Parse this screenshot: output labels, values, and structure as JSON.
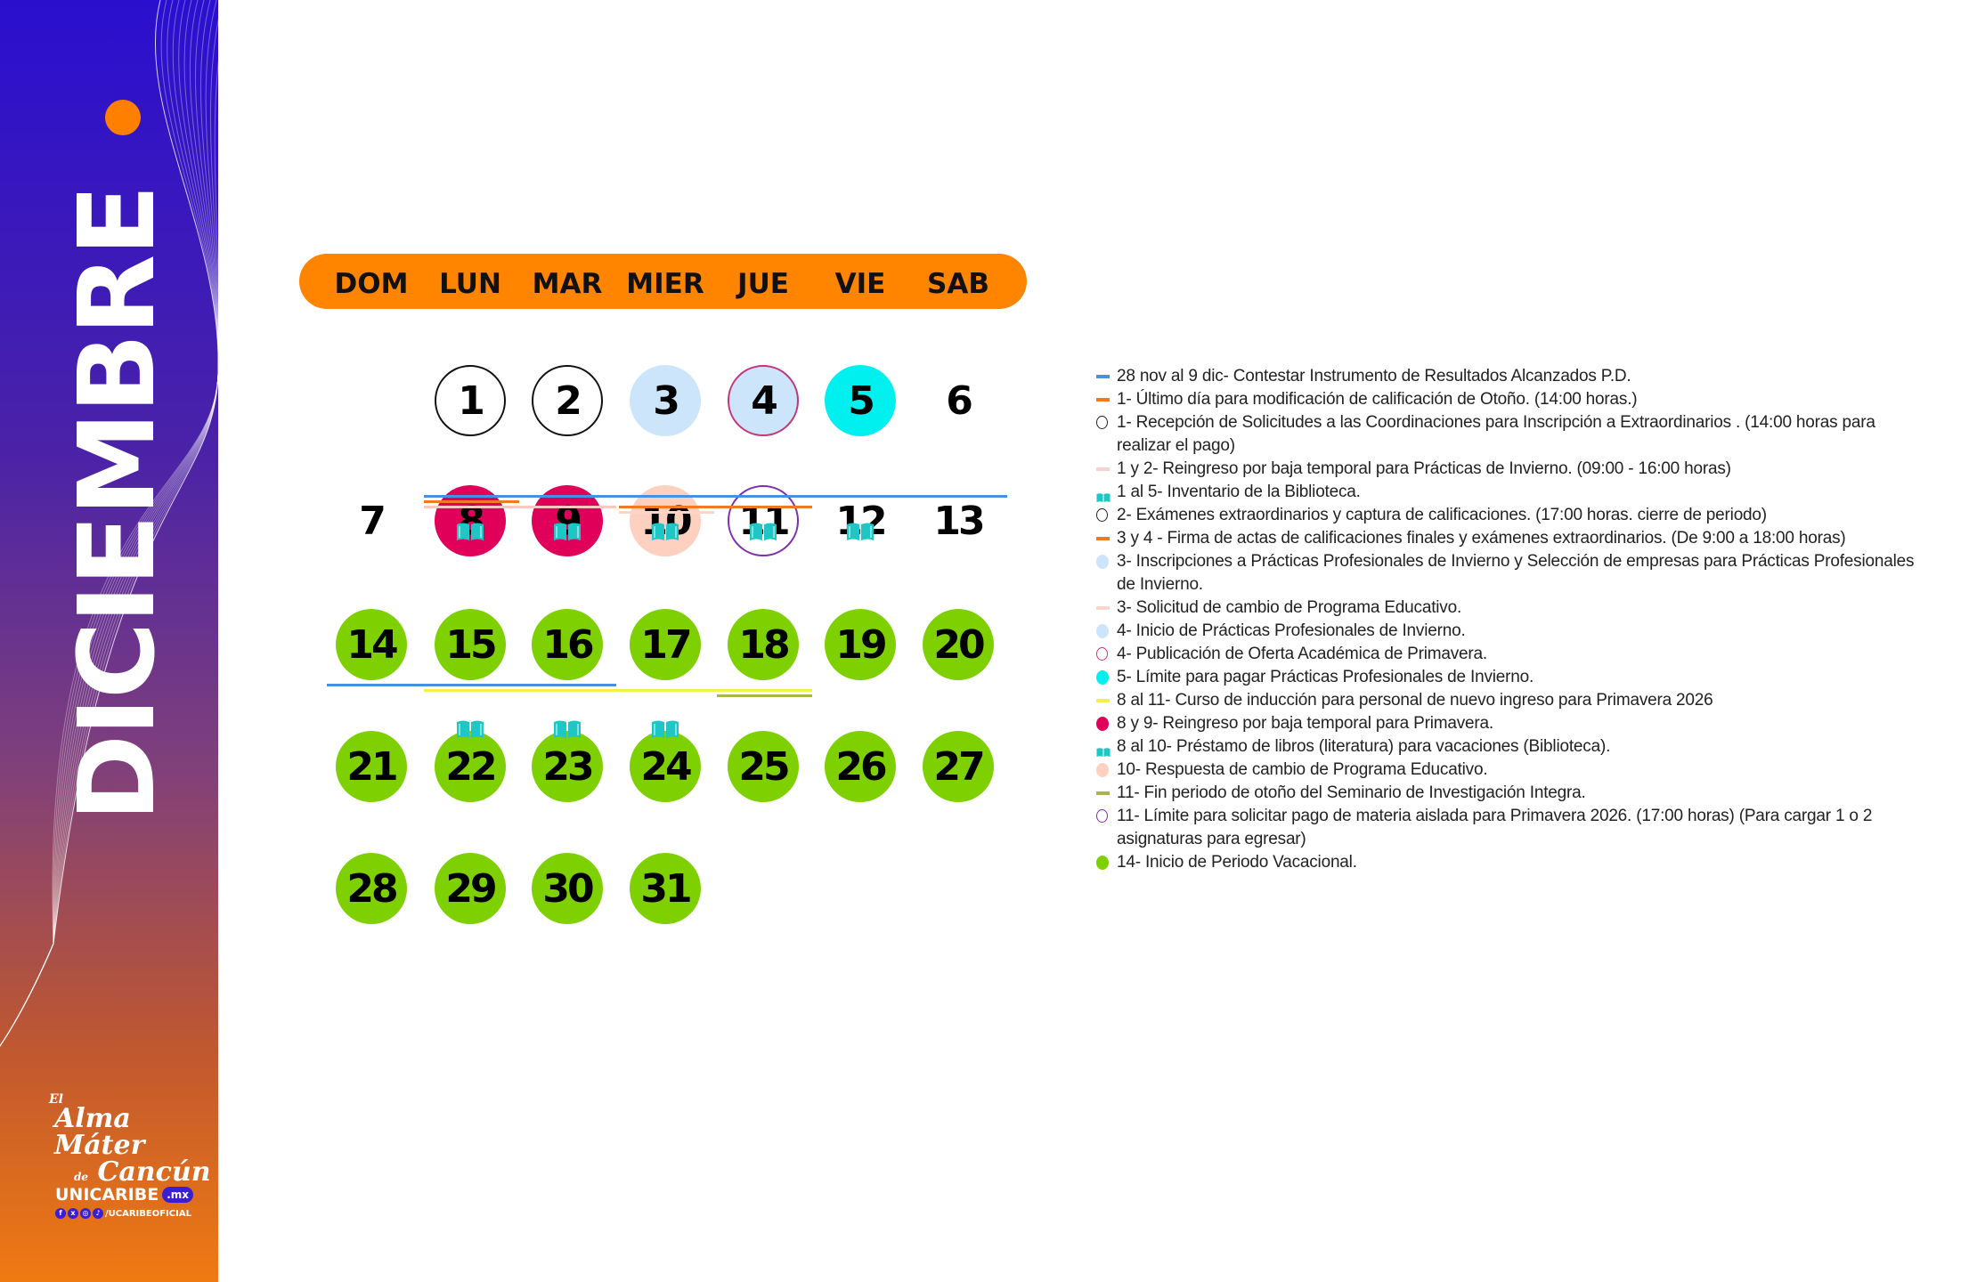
{
  "sidebar": {
    "month": "DICIEMBRE",
    "motto": {
      "a": "El",
      "b": "Alma Máter",
      "d": "de",
      "c": "Cancún"
    },
    "brand": "UNICARIBE",
    "brand_suffix": ".mx",
    "social_handle": "/UCARIBEOFICIAL",
    "social_icons": [
      "facebook-icon",
      "x-icon",
      "instagram-icon",
      "tiktok-icon"
    ],
    "colors": {
      "top": "#2a0fcf",
      "bottom": "#f07a12",
      "dot": "#ff7f00"
    }
  },
  "header": {
    "days": [
      "DOM",
      "LUN",
      "MAR",
      "MIER",
      "JUE",
      "VIE",
      "SAB"
    ],
    "color": "#ff8400"
  },
  "calendar": {
    "first_weekday": 1,
    "days": [
      {
        "n": "1",
        "ring": "#111"
      },
      {
        "n": "2",
        "ring": "#111"
      },
      {
        "n": "3",
        "fill": "#cde5fb"
      },
      {
        "n": "4",
        "fill": "#cde5fb",
        "ring": "#c2367a"
      },
      {
        "n": "5",
        "fill": "#00f0f0"
      },
      {
        "n": "6"
      },
      {
        "n": "7"
      },
      {
        "n": "8",
        "fill": "#e0005a"
      },
      {
        "n": "9",
        "fill": "#e0005a"
      },
      {
        "n": "10",
        "fill": "#fdd0c0"
      },
      {
        "n": "11",
        "ring": "#7d2fb0"
      },
      {
        "n": "12"
      },
      {
        "n": "13"
      },
      {
        "n": "14",
        "fill": "#7ed000"
      },
      {
        "n": "15",
        "fill": "#7ed000"
      },
      {
        "n": "16",
        "fill": "#7ed000"
      },
      {
        "n": "17",
        "fill": "#7ed000"
      },
      {
        "n": "18",
        "fill": "#7ed000"
      },
      {
        "n": "19",
        "fill": "#7ed000"
      },
      {
        "n": "20",
        "fill": "#7ed000"
      },
      {
        "n": "21",
        "fill": "#7ed000"
      },
      {
        "n": "22",
        "fill": "#7ed000"
      },
      {
        "n": "23",
        "fill": "#7ed000"
      },
      {
        "n": "24",
        "fill": "#7ed000"
      },
      {
        "n": "25",
        "fill": "#7ed000"
      },
      {
        "n": "26",
        "fill": "#7ed000"
      },
      {
        "n": "27",
        "fill": "#7ed000"
      },
      {
        "n": "28",
        "fill": "#7ed000"
      },
      {
        "n": "29",
        "fill": "#7ed000"
      },
      {
        "n": "30",
        "fill": "#7ed000"
      },
      {
        "n": "31",
        "fill": "#7ed000"
      }
    ],
    "ranges": [
      {
        "from": 1,
        "to": 6,
        "color": "#4a90e2",
        "slot": 0
      },
      {
        "from": 1,
        "to": 1,
        "color": "#f07a20",
        "slot": 1
      },
      {
        "from": 1,
        "to": 2,
        "color": "#f9c9c0",
        "slot": 2
      },
      {
        "from": 3,
        "to": 4,
        "color": "#f07a20",
        "slot": 2
      },
      {
        "from": 3,
        "to": 3,
        "color": "#fbd6c8",
        "slot": 3
      },
      {
        "from": 7,
        "to": 9,
        "color": "#4a90e2",
        "slot": 0
      },
      {
        "from": 8,
        "to": 11,
        "color": "#f5ef4a",
        "slot": 1
      },
      {
        "from": 11,
        "to": 11,
        "color": "#a9b64a",
        "slot": 2
      }
    ],
    "book_days": [
      1,
      2,
      3,
      4,
      5,
      8,
      9,
      10
    ],
    "book_color": "#1fc6c6"
  },
  "legend": [
    {
      "marker": "line",
      "color": "#4a90e2",
      "text": "28 nov al 9 dic- Contestar Instrumento de Resultados Alcanzados P.D."
    },
    {
      "marker": "line",
      "color": "#f07a20",
      "text": "1- Último día para modificación de calificación de Otoño. (14:00 horas.)"
    },
    {
      "marker": "ring",
      "color": "#222",
      "text": "1- Recepción de Solicitudes a las Coordinaciones para Inscripción a Extraordinarios . (14:00 horas para realizar el pago)"
    },
    {
      "marker": "line",
      "color": "#fbd0d0",
      "text": "1 y 2- Reingreso por baja temporal para Prácticas de Invierno. (09:00 - 16:00 horas)"
    },
    {
      "marker": "book",
      "color": "#1fc6c6",
      "text": "1 al 5- Inventario de la Biblioteca."
    },
    {
      "marker": "ring",
      "color": "#222",
      "text": "2- Exámenes extraordinarios y captura de calificaciones. (17:00 horas. cierre de periodo)"
    },
    {
      "marker": "line",
      "color": "#f07a20",
      "text": "3 y 4 - Firma de actas de calificaciones finales y exámenes extraordinarios.  (De 9:00 a 18:00 horas)"
    },
    {
      "marker": "dot",
      "color": "#cde5fb",
      "text": "3- Inscripciones a Prácticas Profesionales de Invierno y Selección de empresas para Prácticas Profesionales de Invierno."
    },
    {
      "marker": "line",
      "color": "#fbd6c8",
      "text": "3- Solicitud de cambio de Programa Educativo."
    },
    {
      "marker": "dot",
      "color": "#cde5fb",
      "text": "4- Inicio de Prácticas Profesionales de Invierno."
    },
    {
      "marker": "ring",
      "color": "#c2367a",
      "text": "4- Publicación de Oferta Académica de Primavera."
    },
    {
      "marker": "dot",
      "color": "#00f0f0",
      "text": "5- Límite para pagar Prácticas Profesionales de Invierno."
    },
    {
      "marker": "line",
      "color": "#f5ef4a",
      "text": "8 al 11- Curso de inducción para personal de nuevo ingreso para Primavera 2026"
    },
    {
      "marker": "dot",
      "color": "#e0005a",
      "text": "8 y 9- Reingreso por baja temporal para Primavera."
    },
    {
      "marker": "book",
      "color": "#1fc6c6",
      "text": "8 al 10- Préstamo de libros (literatura) para vacaciones (Biblioteca)."
    },
    {
      "marker": "dot",
      "color": "#fdd0c0",
      "text": "10- Respuesta de cambio de Programa Educativo."
    },
    {
      "marker": "line",
      "color": "#a9b64a",
      "text": "11- Fin periodo de otoño del Seminario de Investigación Integra."
    },
    {
      "marker": "ring",
      "color": "#7d2fb0",
      "text": "11- Límite para solicitar pago de materia aislada para Primavera 2026.  (17:00 horas) (Para cargar 1 o 2 asignaturas para egresar)"
    },
    {
      "marker": "dot",
      "color": "#7ed000",
      "text": "14- Inicio de Periodo Vacacional."
    }
  ]
}
